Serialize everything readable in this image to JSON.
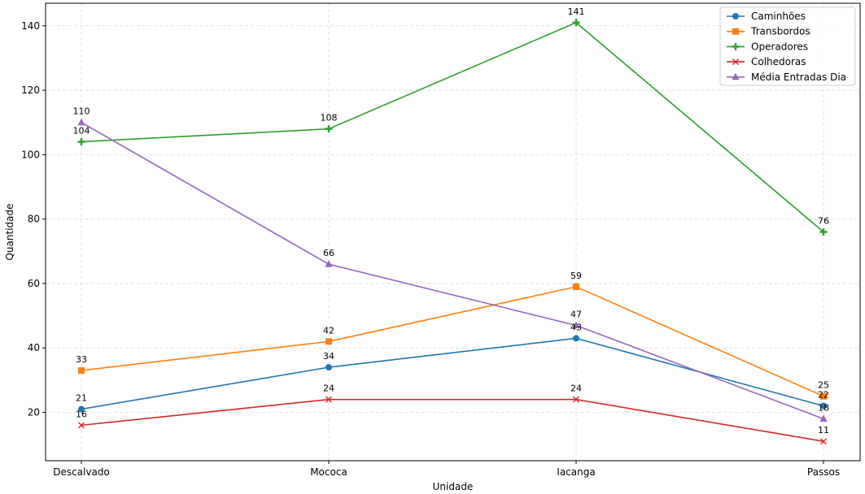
{
  "chart_data": {
    "type": "line",
    "categories": [
      "Descalvado",
      "Mococa",
      "Iacanga",
      "Passos"
    ],
    "series": [
      {
        "name": "Caminhões",
        "values": [
          21,
          34,
          43,
          22
        ],
        "color": "#1f77b4",
        "marker": "circle"
      },
      {
        "name": "Transbordos",
        "values": [
          33,
          42,
          59,
          25
        ],
        "color": "#ff7f0e",
        "marker": "square"
      },
      {
        "name": "Operadores",
        "values": [
          104,
          108,
          141,
          76
        ],
        "color": "#2ca02c",
        "marker": "plus"
      },
      {
        "name": "Colhedoras",
        "values": [
          16,
          24,
          24,
          11
        ],
        "color": "#d62728",
        "marker": "x"
      },
      {
        "name": "Média Entradas Dia",
        "values": [
          110,
          66,
          47,
          18
        ],
        "color": "#9467bd",
        "marker": "triangle"
      }
    ],
    "xlabel": "Unidade",
    "ylabel": "Quantidade",
    "ylim": [
      5,
      147
    ],
    "yticks": [
      20,
      40,
      60,
      80,
      100,
      120,
      140
    ],
    "grid": true,
    "legend_position": "top-right"
  }
}
